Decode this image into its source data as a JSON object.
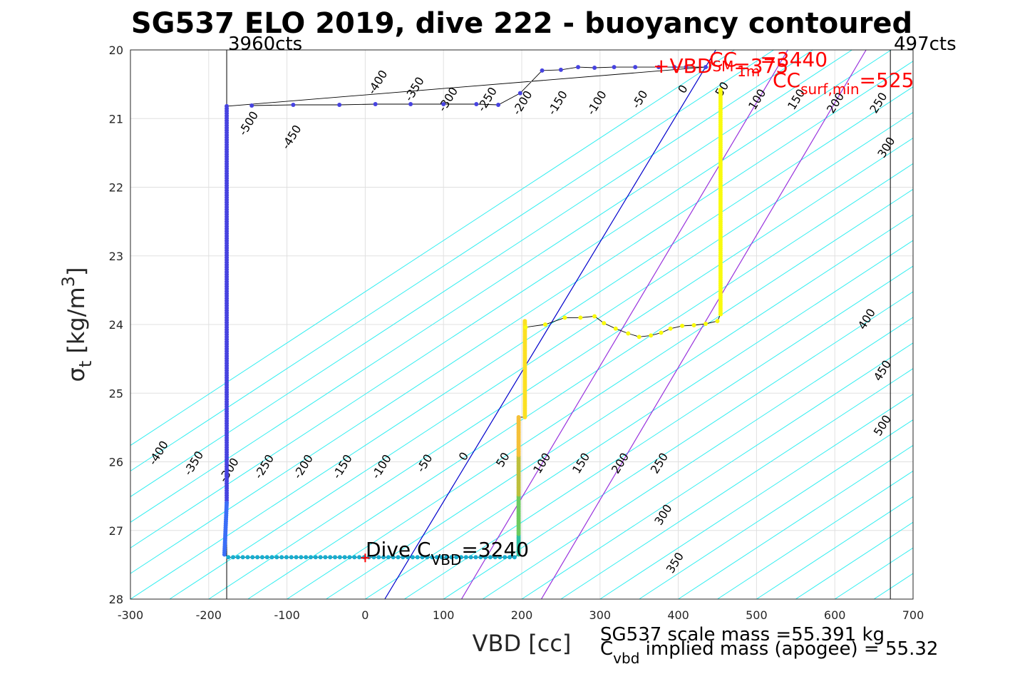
{
  "chart_data": {
    "type": "scatter",
    "title": "SG537 ELO 2019, dive 222 - buoyancy contoured",
    "xlabel": "VBD [cc]",
    "ylabel_sym": "σ",
    "ylabel_sub": "t",
    "ylabel_rest": " [kg/m",
    "ylabel_sup": "3",
    "ylabel_close": "]",
    "xlim": [
      -300,
      700
    ],
    "ylim": [
      28,
      20
    ],
    "xticks": [
      -300,
      -200,
      -100,
      0,
      100,
      200,
      300,
      400,
      500,
      600,
      700
    ],
    "yticks": [
      20,
      21,
      22,
      23,
      24,
      25,
      26,
      27,
      28
    ],
    "grid": true,
    "contour_slope_cc_per_sigma": 134,
    "contour_levels": [
      -600,
      -550,
      -500,
      -450,
      -400,
      -350,
      -300,
      -250,
      -200,
      -150,
      -100,
      -50,
      0,
      50,
      100,
      150,
      200,
      250,
      300,
      350,
      400,
      450,
      500,
      550,
      600,
      650,
      700,
      750,
      800,
      850,
      900
    ],
    "contour_labels_upper": [
      {
        "text": "-500",
        "x": -145,
        "y": 21.1
      },
      {
        "text": "-450",
        "x": -90,
        "y": 21.3
      },
      {
        "text": "-400",
        "x": 20,
        "y": 20.5
      },
      {
        "text": "-350",
        "x": 67,
        "y": 20.6
      },
      {
        "text": "-300",
        "x": 110,
        "y": 20.75
      },
      {
        "text": "-250",
        "x": 160,
        "y": 20.75
      },
      {
        "text": "-200",
        "x": 205,
        "y": 20.8
      },
      {
        "text": "-150",
        "x": 250,
        "y": 20.8
      },
      {
        "text": "-100",
        "x": 300,
        "y": 20.8
      },
      {
        "text": "-50",
        "x": 355,
        "y": 20.75
      },
      {
        "text": "0",
        "x": 410,
        "y": 20.6
      },
      {
        "text": "50",
        "x": 460,
        "y": 20.6
      },
      {
        "text": "100",
        "x": 505,
        "y": 20.75
      },
      {
        "text": "150",
        "x": 555,
        "y": 20.75
      },
      {
        "text": "200",
        "x": 605,
        "y": 20.8
      },
      {
        "text": "250",
        "x": 660,
        "y": 20.8
      },
      {
        "text": "300",
        "x": 670,
        "y": 21.45
      },
      {
        "text": "400",
        "x": 645,
        "y": 23.95
      },
      {
        "text": "450",
        "x": 665,
        "y": 24.7
      },
      {
        "text": "500",
        "x": 665,
        "y": 25.5
      }
    ],
    "contour_labels_lower": [
      {
        "text": "-400",
        "x": -260,
        "y": 25.9
      },
      {
        "text": "-350",
        "x": -215,
        "y": 26.05
      },
      {
        "text": "-300",
        "x": -170,
        "y": 26.15
      },
      {
        "text": "-250",
        "x": -125,
        "y": 26.1
      },
      {
        "text": "-200",
        "x": -75,
        "y": 26.1
      },
      {
        "text": "-150",
        "x": -25,
        "y": 26.1
      },
      {
        "text": "-100",
        "x": 25,
        "y": 26.1
      },
      {
        "text": "-50",
        "x": 80,
        "y": 26.05
      },
      {
        "text": "0",
        "x": 130,
        "y": 25.95
      },
      {
        "text": "50",
        "x": 180,
        "y": 26.0
      },
      {
        "text": "100",
        "x": 230,
        "y": 26.05
      },
      {
        "text": "150",
        "x": 280,
        "y": 26.05
      },
      {
        "text": "200",
        "x": 330,
        "y": 26.05
      },
      {
        "text": "250",
        "x": 380,
        "y": 26.05
      },
      {
        "text": "300",
        "x": 385,
        "y": 26.8
      },
      {
        "text": "350",
        "x": 400,
        "y": 27.5
      }
    ],
    "vline_left": {
      "x": -177,
      "label": "3960cts"
    },
    "vline_right": {
      "x": 671,
      "label": "497cts"
    },
    "line_blue": {
      "points": [
        [
          25,
          28
        ],
        [
          448,
          20
        ]
      ],
      "color": "#0000cc"
    },
    "line_purple_1": {
      "points": [
        [
          123,
          28
        ],
        [
          540,
          20
        ]
      ],
      "color": "#9933dd"
    },
    "line_purple_2": {
      "points": [
        [
          225,
          28
        ],
        [
          640,
          20
        ]
      ],
      "color": "#9933dd"
    },
    "descent": [
      [
        -145,
        20.81
      ],
      [
        -92,
        20.8
      ],
      [
        -33,
        20.8
      ],
      [
        13,
        20.79
      ],
      [
        58,
        20.79
      ],
      [
        100,
        20.79
      ],
      [
        142,
        20.79
      ],
      [
        170,
        20.8
      ],
      [
        198,
        20.63
      ],
      [
        226,
        20.3
      ],
      [
        250,
        20.29
      ],
      [
        272,
        20.25
      ],
      [
        293,
        20.26
      ],
      [
        318,
        20.25
      ],
      [
        345,
        20.25
      ],
      [
        375,
        20.25
      ],
      [
        395,
        20.25
      ],
      [
        410,
        20.25
      ],
      [
        435,
        20.25
      ]
    ],
    "descent_vertical": {
      "x_top": -177,
      "x_bottom": -180,
      "y_top": 20.82,
      "y_knee": 26.6,
      "y_bottom": 27.38
    },
    "bottom_row": {
      "y": 27.39,
      "x_start": -175,
      "x_end": 195,
      "step": 6.2
    },
    "ascent_lower_vertical": {
      "x": 196,
      "y_bottom": 27.35,
      "y_top": 25.35
    },
    "ascent_mid_vertical": {
      "x": 204,
      "y_bottom": 25.35,
      "y_top": 23.95
    },
    "ascent_wiggle": [
      [
        205,
        24.04
      ],
      [
        230,
        24.0
      ],
      [
        255,
        23.9
      ],
      [
        275,
        23.9
      ],
      [
        293,
        23.88
      ],
      [
        305,
        23.98
      ],
      [
        320,
        24.06
      ],
      [
        336,
        24.13
      ],
      [
        350,
        24.18
      ],
      [
        365,
        24.16
      ],
      [
        378,
        24.12
      ],
      [
        390,
        24.06
      ],
      [
        405,
        24.02
      ],
      [
        420,
        24.01
      ],
      [
        435,
        23.99
      ],
      [
        450,
        23.95
      ],
      [
        454,
        23.85
      ]
    ],
    "ascent_upper_vertical": {
      "x": 454,
      "y_bottom": 23.85,
      "y_top": 20.55
    },
    "annotations": {
      "cc_label": "CC",
      "cc_sub": "1m",
      "cc_sup": "=3440",
      "vbd_label": "+VBD",
      "vbd_sub": "SM",
      "vbd_sup": "=375",
      "cc_surf_label": "CC",
      "cc_surf_sub": "surf,min",
      "cc_surf_value": "=525",
      "dive_cvbd_label": "Dive C",
      "dive_cvbd_sub": "VBD",
      "dive_cvbd_value": "=3240",
      "dive_cvbd_marker": [
        0,
        27.4
      ]
    },
    "footer": {
      "scale_mass": "SG537 scale mass =55.391 kg",
      "cvbd_label": "C",
      "cvbd_sub": "vbd",
      "implied_mass": " implied mass (apogee) = 55.32"
    }
  }
}
